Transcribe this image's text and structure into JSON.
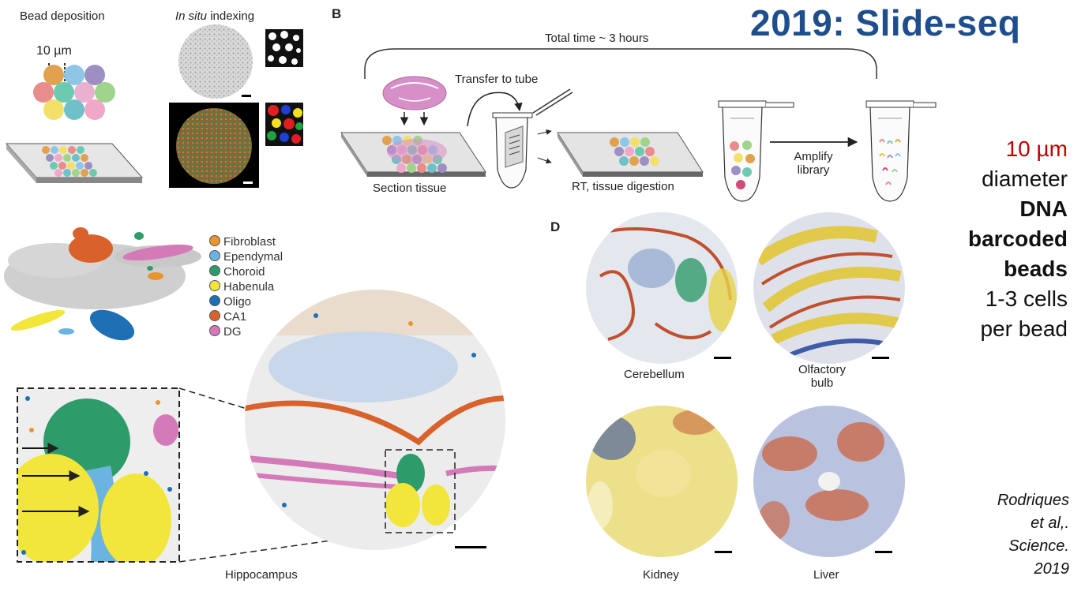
{
  "title": "2019: Slide-seq",
  "panel_a": {
    "bead_deposition": "Bead deposition",
    "in_situ": "In situ",
    "indexing": " indexing",
    "scale": "10 µm"
  },
  "panel_b": {
    "letter": "B",
    "total_time": "Total time ~ 3 hours",
    "transfer": "Transfer to tube",
    "section": "Section tissue",
    "rt": "RT, tissue digestion",
    "amplify_1": "Amplify",
    "amplify_2": "library"
  },
  "panel_c": {
    "legend": [
      {
        "label": "Fibroblast",
        "color": "#e8952e"
      },
      {
        "label": "Ependymal",
        "color": "#6bb3e0"
      },
      {
        "label": "Choroid",
        "color": "#2e9b6a"
      },
      {
        "label": "Habenula",
        "color": "#f2e63b"
      },
      {
        "label": "Oligo",
        "color": "#1f6fb5"
      },
      {
        "label": "CA1",
        "color": "#d9622b"
      },
      {
        "label": "DG",
        "color": "#d47ab8"
      }
    ],
    "hippocampus": "Hippocampus"
  },
  "panel_d": {
    "letter": "D",
    "cerebellum": "Cerebellum",
    "olfactory_1": "Olfactory",
    "olfactory_2": "bulb",
    "kidney": "Kidney",
    "liver": "Liver"
  },
  "sidebar": {
    "size": "10 µm",
    "diameter": "diameter",
    "dna": "DNA",
    "barcoded": "barcoded",
    "beads": "beads",
    "cells": "1-3 cells",
    "per_bead": "per bead"
  },
  "citation": {
    "line1": "Rodriques",
    "line2": "et al,.",
    "line3": "Science.",
    "line4": "2019"
  }
}
